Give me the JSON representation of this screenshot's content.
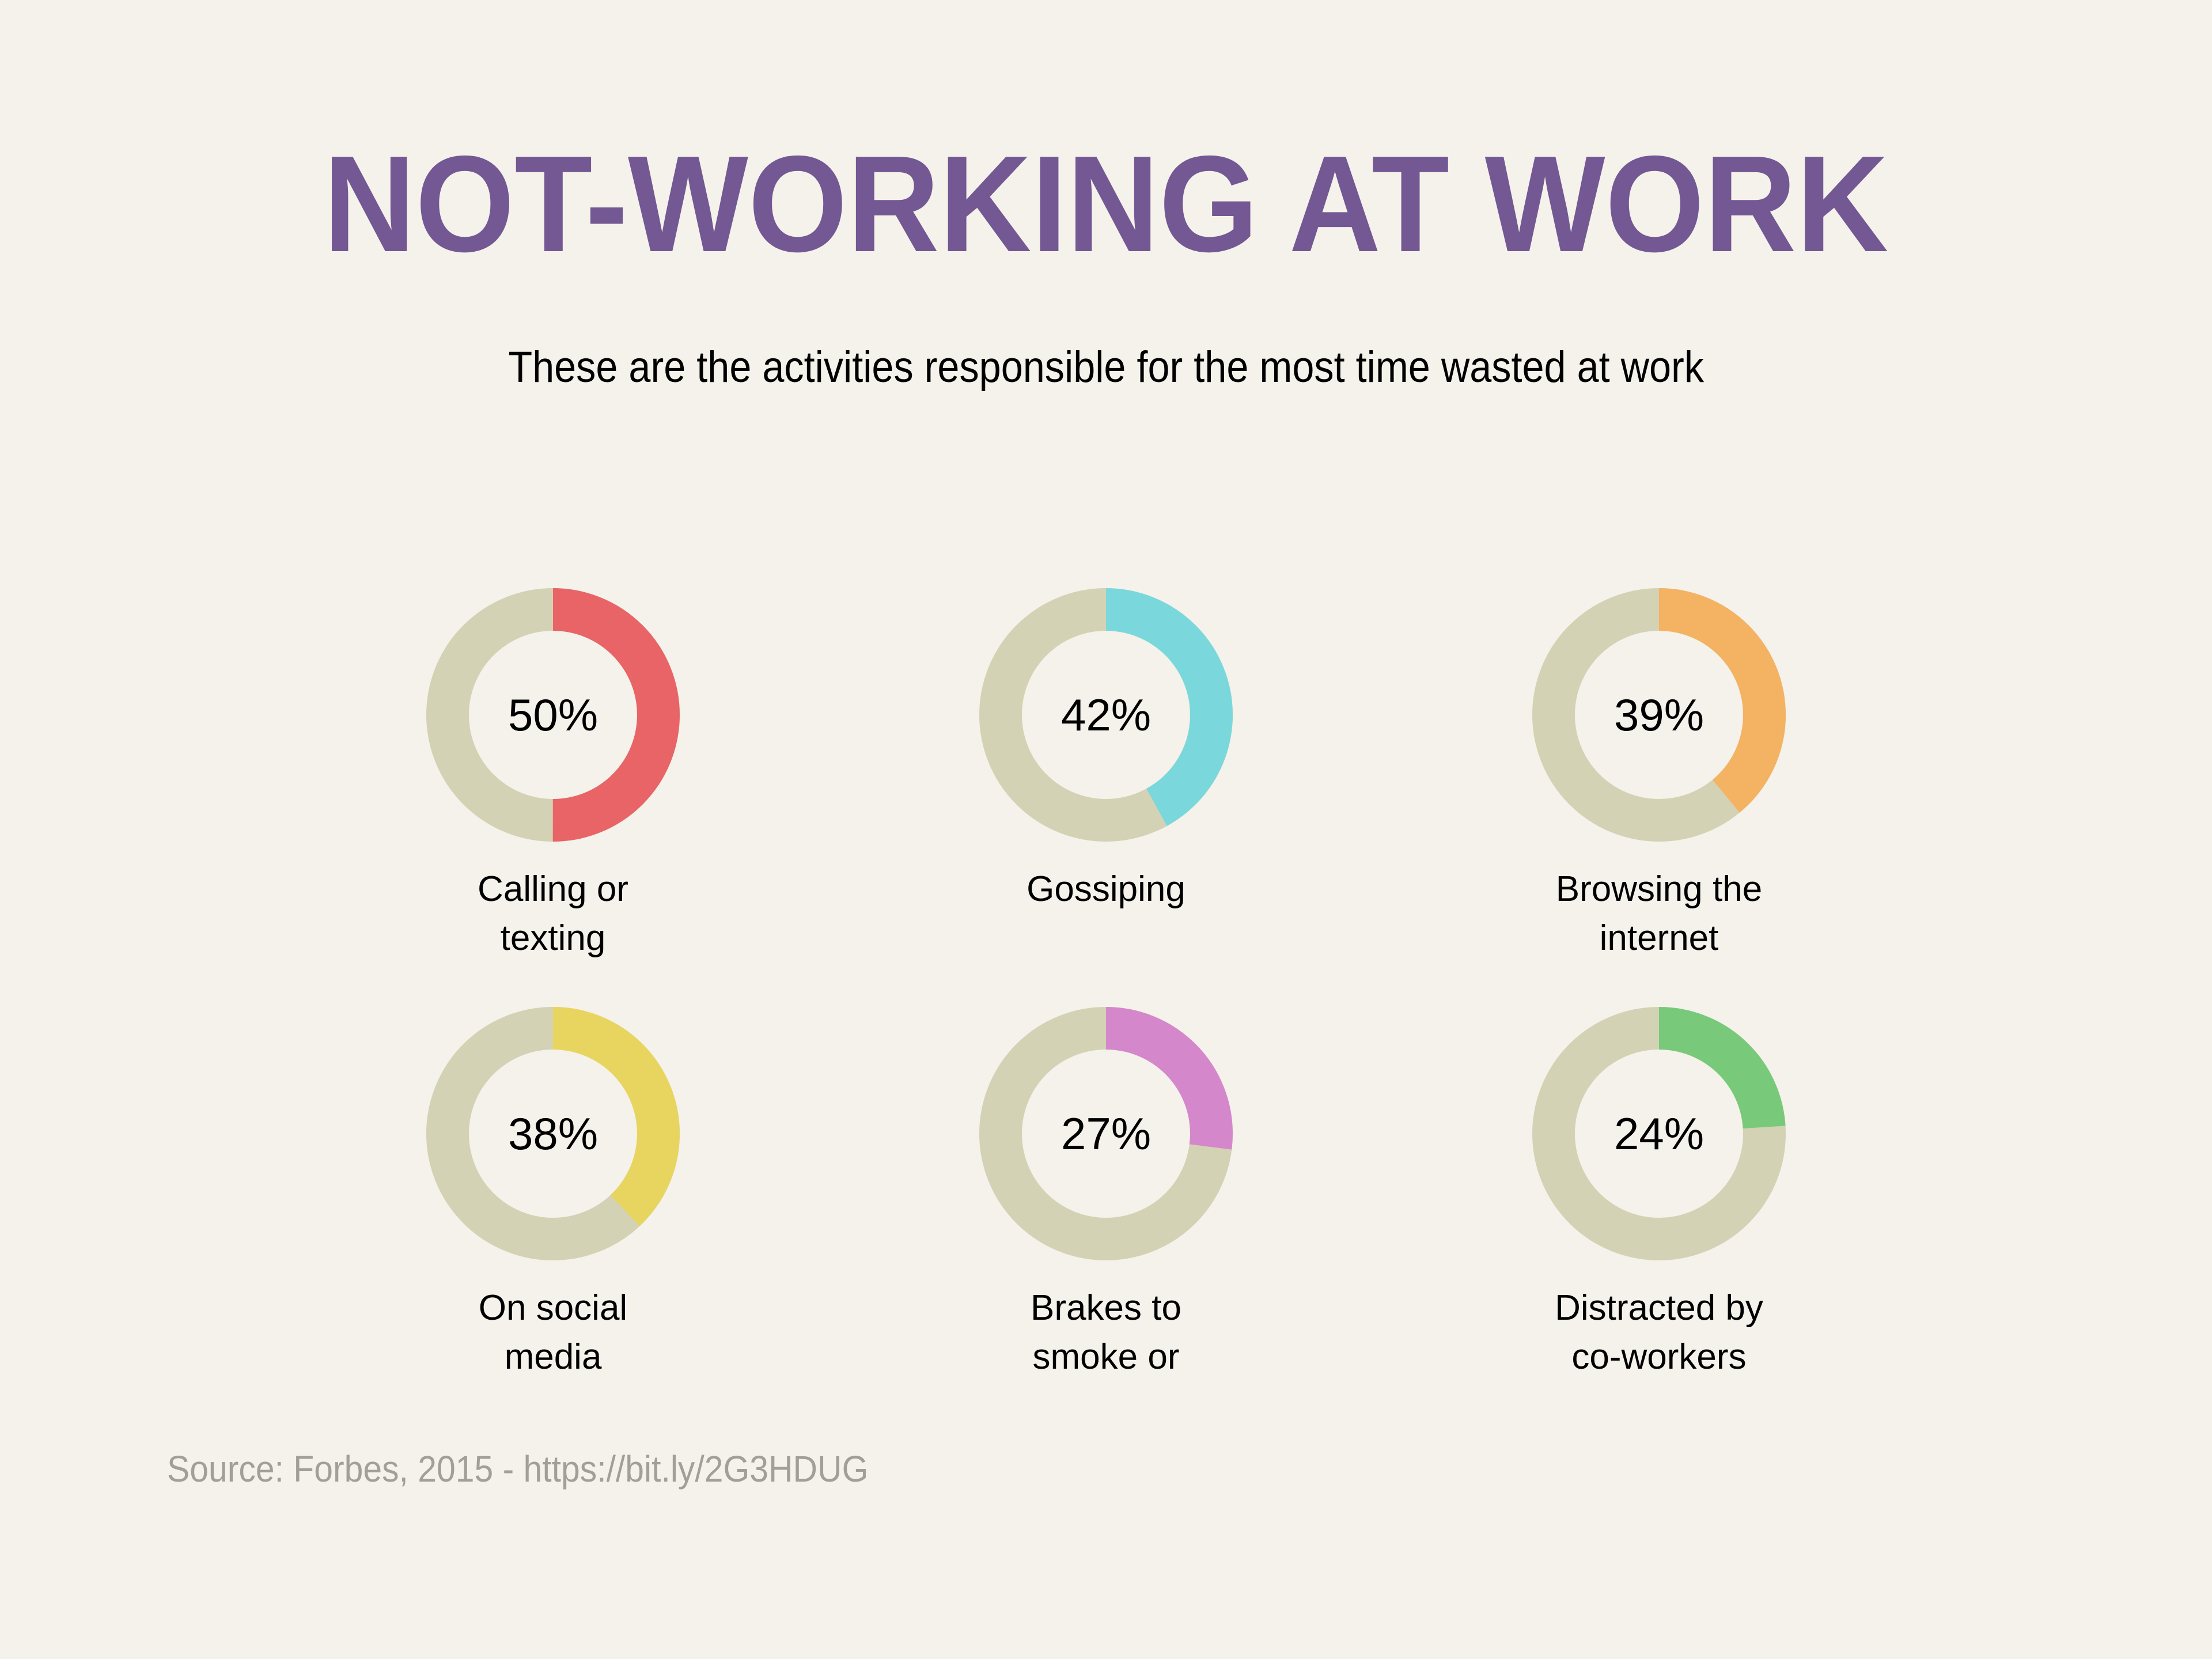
{
  "header": {
    "title": "NOT-WORKING AT WORK",
    "subtitle": "These are the activities responsible for the most time wasted at work"
  },
  "footer": {
    "source": "Source: Forbes, 2015 - https://bit.ly/2G3HDUG"
  },
  "colors": {
    "background": "#f4f2ea",
    "title": "#735893",
    "track": "#d4d2b4",
    "source_text": "#a29f98"
  },
  "items": [
    {
      "value": 50,
      "value_label": "50%",
      "label_lines": [
        "Calling or",
        "texting"
      ],
      "color": "#e86466"
    },
    {
      "value": 42,
      "value_label": "42%",
      "label_lines": [
        "Gossiping"
      ],
      "color": "#7ad8dc"
    },
    {
      "value": 39,
      "value_label": "39%",
      "label_lines": [
        "Browsing the",
        "internet"
      ],
      "color": "#f4b263"
    },
    {
      "value": 38,
      "value_label": "38%",
      "label_lines": [
        "On social",
        "media"
      ],
      "color": "#e8d55f"
    },
    {
      "value": 27,
      "value_label": "27%",
      "label_lines": [
        "Brakes to",
        "smoke or"
      ],
      "color": "#d587cc"
    },
    {
      "value": 24,
      "value_label": "24%",
      "label_lines": [
        "Distracted by",
        "co-workers"
      ],
      "color": "#78c97a"
    }
  ],
  "chart_data": {
    "type": "pie",
    "subtype": "donut-grid",
    "title": "NOT-WORKING AT WORK",
    "subtitle": "These are the activities responsible for the most time wasted at work",
    "categories": [
      "Calling or texting",
      "Gossiping",
      "Browsing the internet",
      "On social media",
      "Brakes to smoke or",
      "Distracted by co-workers"
    ],
    "values": [
      50,
      42,
      39,
      38,
      27,
      24
    ],
    "unit": "%",
    "colors": [
      "#e86466",
      "#7ad8dc",
      "#f4b263",
      "#e8d55f",
      "#d587cc",
      "#78c97a"
    ],
    "track_color": "#d4d2b4",
    "layout": {
      "rows": 2,
      "cols": 3,
      "start_angle": "12 o'clock",
      "direction": "clockwise"
    },
    "legend": "none",
    "annotation": "Source: Forbes, 2015 - https://bit.ly/2G3HDUG"
  }
}
